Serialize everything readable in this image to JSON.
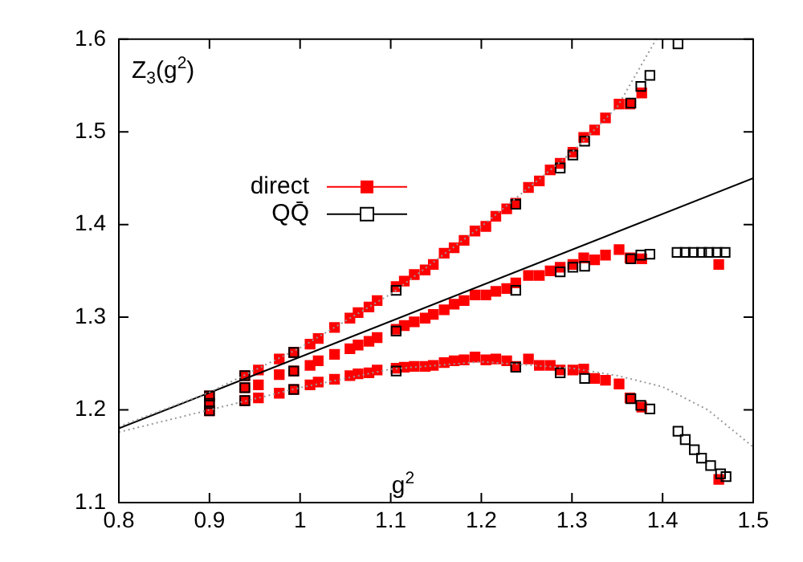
{
  "chart_data": {
    "type": "scatter",
    "ylabel": "Z$_{3}$(g$^{2}$)",
    "xlabel": "g$^{2}$",
    "xlim": [
      0.8,
      1.5
    ],
    "ylim": [
      1.1,
      1.6
    ],
    "xticks": [
      0.8,
      0.9,
      1,
      1.1,
      1.2,
      1.3,
      1.4,
      1.5
    ],
    "yticks": [
      1.1,
      1.2,
      1.3,
      1.4,
      1.5,
      1.6
    ],
    "grid": false,
    "legend": "top left",
    "series": [
      {
        "name": "direct",
        "color": "#ff0000",
        "marker": "square",
        "x": [
          0.9,
          0.9,
          0.9,
          0.939,
          0.939,
          0.939,
          0.954,
          0.954,
          0.954,
          0.977,
          0.977,
          0.977,
          0.993,
          0.993,
          0.993,
          1.011,
          1.011,
          1.011,
          1.02,
          1.02,
          1.02,
          1.038,
          1.038,
          1.038,
          1.055,
          1.055,
          1.055,
          1.064,
          1.064,
          1.064,
          1.076,
          1.076,
          1.076,
          1.085,
          1.085,
          1.085,
          1.106,
          1.106,
          1.106,
          1.115,
          1.115,
          1.115,
          1.126,
          1.126,
          1.126,
          1.138,
          1.138,
          1.138,
          1.147,
          1.147,
          1.147,
          1.159,
          1.159,
          1.159,
          1.17,
          1.17,
          1.17,
          1.181,
          1.181,
          1.181,
          1.193,
          1.193,
          1.193,
          1.205,
          1.205,
          1.205,
          1.216,
          1.216,
          1.216,
          1.228,
          1.228,
          1.228,
          1.238,
          1.238,
          1.238,
          1.252,
          1.252,
          1.252,
          1.264,
          1.264,
          1.264,
          1.276,
          1.276,
          1.276,
          1.287,
          1.287,
          1.287,
          1.301,
          1.301,
          1.301,
          1.313,
          1.313,
          1.313,
          1.325,
          1.325,
          1.325,
          1.337,
          1.337,
          1.337,
          1.352,
          1.352,
          1.352,
          1.364,
          1.364,
          1.364,
          1.377,
          1.377,
          1.377,
          1.462,
          1.462
        ],
        "values": [
          1.215,
          1.207,
          1.199,
          1.237,
          1.224,
          1.21,
          1.243,
          1.227,
          1.213,
          1.255,
          1.238,
          1.218,
          1.262,
          1.242,
          1.222,
          1.271,
          1.248,
          1.227,
          1.277,
          1.253,
          1.23,
          1.289,
          1.26,
          1.233,
          1.299,
          1.266,
          1.237,
          1.305,
          1.27,
          1.239,
          1.311,
          1.274,
          1.24,
          1.318,
          1.278,
          1.243,
          1.333,
          1.287,
          1.245,
          1.339,
          1.291,
          1.246,
          1.346,
          1.295,
          1.247,
          1.351,
          1.299,
          1.247,
          1.357,
          1.303,
          1.248,
          1.369,
          1.308,
          1.251,
          1.375,
          1.314,
          1.253,
          1.383,
          1.318,
          1.254,
          1.393,
          1.324,
          1.257,
          1.398,
          1.324,
          1.254,
          1.409,
          1.328,
          1.255,
          1.417,
          1.331,
          1.253,
          1.423,
          1.337,
          1.247,
          1.44,
          1.345,
          1.255,
          1.447,
          1.345,
          1.248,
          1.459,
          1.35,
          1.248,
          1.466,
          1.354,
          1.243,
          1.478,
          1.357,
          1.243,
          1.494,
          1.364,
          1.244,
          1.502,
          1.362,
          1.234,
          1.515,
          1.367,
          1.232,
          1.53,
          1.373,
          1.228,
          1.53,
          1.364,
          1.213,
          1.542,
          1.363,
          1.203,
          1.357,
          1.125
        ]
      },
      {
        "name": "QQ̄",
        "color": "#000000",
        "marker": "square",
        "x": [
          0.9,
          0.9,
          0.9,
          0.939,
          0.939,
          0.939,
          0.993,
          0.993,
          0.993,
          1.106,
          1.106,
          1.106,
          1.238,
          1.238,
          1.238,
          1.287,
          1.287,
          1.287,
          1.301,
          1.301,
          1.314,
          1.314,
          1.314,
          1.365,
          1.365,
          1.365,
          1.376,
          1.376,
          1.376,
          1.386,
          1.386,
          1.386,
          1.417,
          1.416,
          1.425,
          1.434,
          1.443,
          1.451,
          1.46,
          1.469,
          1.417,
          1.425,
          1.435,
          1.443,
          1.453,
          1.464,
          1.47
        ],
        "values": [
          1.215,
          1.207,
          1.199,
          1.237,
          1.224,
          1.21,
          1.262,
          1.242,
          1.222,
          1.329,
          1.285,
          1.242,
          1.422,
          1.329,
          1.246,
          1.461,
          1.349,
          1.24,
          1.475,
          1.354,
          1.49,
          1.355,
          1.234,
          1.531,
          1.363,
          1.212,
          1.549,
          1.367,
          1.205,
          1.561,
          1.368,
          1.201,
          1.595,
          1.37,
          1.37,
          1.37,
          1.37,
          1.37,
          1.37,
          1.37,
          1.177,
          1.168,
          1.157,
          1.148,
          1.14,
          1.131,
          1.128
        ]
      },
      {
        "color": "#000000",
        "type": "line",
        "line_style": "solid",
        "x": [
          0.8,
          1.5
        ],
        "values": [
          1.18,
          1.45
        ]
      },
      {
        "color": "#999999",
        "type": "line",
        "line_style": "dotted",
        "x": [
          0.8,
          0.9,
          1.0,
          1.1,
          1.2,
          1.3,
          1.35,
          1.393
        ],
        "values": [
          1.182,
          1.219,
          1.267,
          1.325,
          1.398,
          1.478,
          1.527,
          1.6
        ]
      },
      {
        "color": "#999999",
        "type": "line",
        "line_style": "dotted",
        "x": [
          0.8,
          0.9,
          1.0,
          1.1,
          1.2,
          1.3,
          1.35,
          1.4,
          1.45,
          1.5
        ],
        "values": [
          1.176,
          1.2,
          1.224,
          1.244,
          1.252,
          1.245,
          1.237,
          1.225,
          1.2,
          1.16
        ]
      }
    ]
  }
}
